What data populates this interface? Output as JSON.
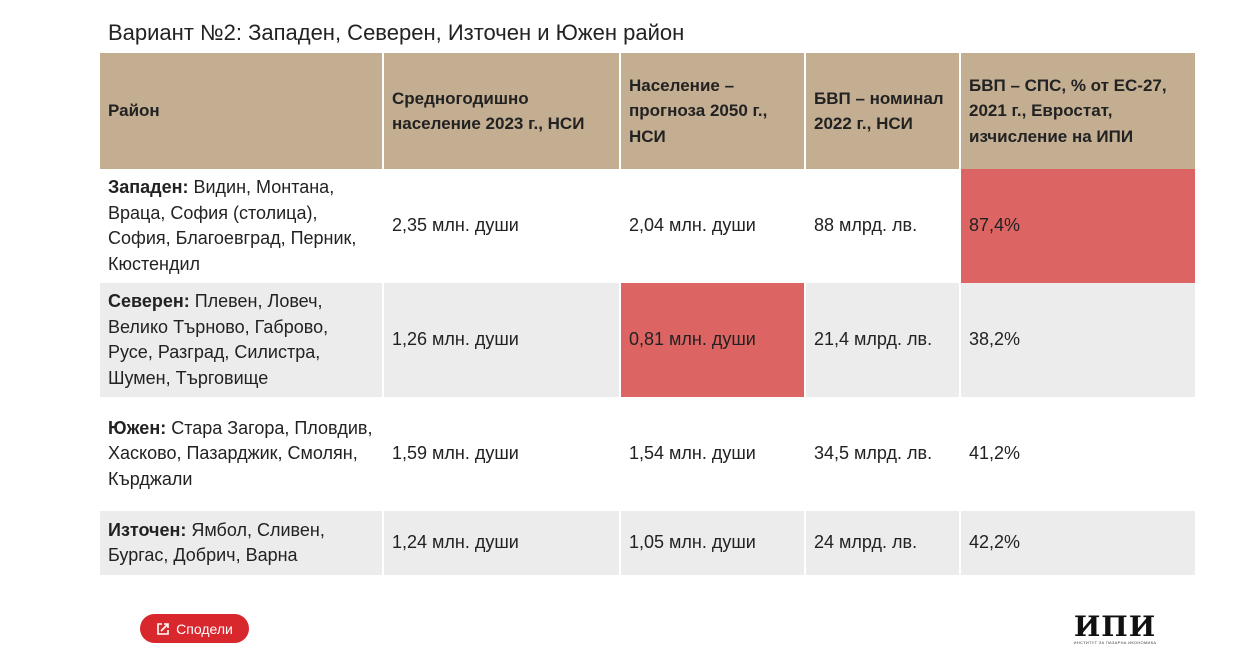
{
  "title": "Вариант №2: Западен, Северен, Източен и Южен район",
  "table": {
    "headers": [
      "Район",
      "Средногодишно население 2023 г., НСИ",
      "Население – прогноза 2050 г., НСИ",
      "БВП – номинал 2022 г., НСИ",
      "БВП – СПС, % от ЕС-27, 2021 г., Евростат, изчисление на ИПИ"
    ],
    "rows": [
      {
        "region_name": "Западен:",
        "region_list": " Видин, Монтана, Враца, София (столица), София, Благоевград, Перник, Кюстендил",
        "pop_2023": "2,35 млн. души",
        "pop_2050": "2,04 млн. души",
        "gdp_nominal": "88 млрд. лв.",
        "gdp_pps": "87,4%"
      },
      {
        "region_name": "Северен:",
        "region_list": " Плевен, Ловеч, Велико Търново, Габрово, Русе, Разград, Силистра, Шумен, Търговище",
        "pop_2023": "1,26 млн. души",
        "pop_2050": "0,81 млн. души",
        "gdp_nominal": "21,4 млрд. лв.",
        "gdp_pps": "38,2%"
      },
      {
        "region_name": "Южен:",
        "region_list": " Стара Загора, Пловдив, Хасково, Пазарджик, Смолян, Кърджали",
        "pop_2023": "1,59 млн. души",
        "pop_2050": "1,54 млн. души",
        "gdp_nominal": "34,5 млрд. лв.",
        "gdp_pps": "41,2%"
      },
      {
        "region_name": "Източен:",
        "region_list": " Ямбол, Сливен, Бургас, Добрич, Варна",
        "pop_2023": "1,24 млн. души",
        "pop_2050": "1,05 млн. души",
        "gdp_nominal": "24 млрд. лв.",
        "gdp_pps": "42,2%"
      }
    ]
  },
  "share_button": {
    "label": "Сподели",
    "icon": "share-icon"
  },
  "logo": {
    "mark": "ИПИ",
    "subtitle": "ИНСТИТУТ ЗА ПАЗАРНА ИКОНОМИКА"
  },
  "colors": {
    "header_bg": "#c4ae92",
    "highlight": "#dc6563",
    "row_alt": "#ececec",
    "button": "#d9272e"
  }
}
